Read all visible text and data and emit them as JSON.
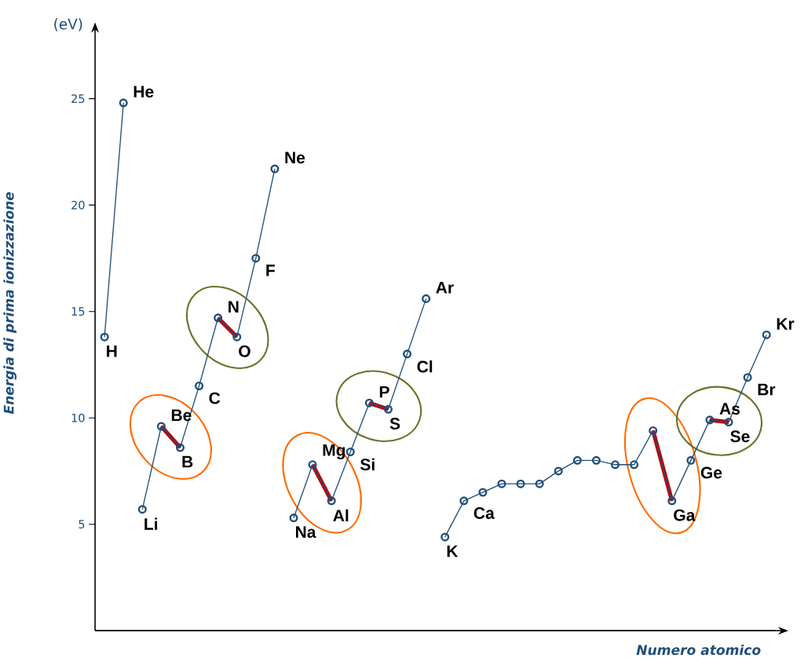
{
  "chart_data": {
    "type": "line",
    "xlabel": "Numero atomico",
    "ylabel": "Energia di prima ionizzazione",
    "annotations": [
      "(eV)"
    ],
    "categories": [
      null,
      null,
      null,
      null,
      null,
      null,
      null,
      null,
      null,
      null,
      null,
      null,
      null,
      null,
      null,
      null,
      null,
      null,
      null,
      null,
      null,
      null,
      null,
      null,
      null,
      null,
      null,
      null,
      null,
      null,
      null,
      null,
      null,
      null,
      null,
      null
    ],
    "value_labels": [
      "H",
      "He",
      "Li",
      "Be",
      "B",
      "C",
      "N",
      "O",
      "F",
      "Ne",
      "Na",
      "Mg",
      "Al",
      "Si",
      "P",
      "S",
      "Cl",
      "Ar",
      "K",
      "Ca",
      null,
      null,
      null,
      null,
      null,
      null,
      null,
      null,
      null,
      null,
      "Ga",
      "Ge",
      "As",
      "Se",
      "Br",
      "Kr"
    ],
    "ylim": [
      0,
      28
    ],
    "yticks": [
      5,
      10,
      15,
      20,
      25
    ],
    "marker": "circle",
    "line_style": "solid",
    "series": [
      {
        "color": "#c00000",
        "type": "line",
        "marker": "none",
        "values": [
          null,
          null,
          null,
          9.6,
          8.6,
          null,
          null,
          null,
          null,
          null,
          null,
          null,
          null,
          null,
          null,
          null,
          null,
          null,
          null,
          null,
          null,
          null,
          null,
          null,
          null,
          null,
          null,
          null,
          null,
          null,
          null,
          null,
          null,
          null,
          null,
          null
        ]
      },
      {
        "color": "#c00000",
        "type": "line",
        "marker": "none",
        "values": [
          null,
          null,
          null,
          null,
          null,
          null,
          14.7,
          13.8,
          null,
          null,
          null,
          null,
          null,
          null,
          null,
          null,
          null,
          null,
          null,
          null,
          null,
          null,
          null,
          null,
          null,
          null,
          null,
          null,
          null,
          null,
          null,
          null,
          null,
          null,
          null,
          null
        ]
      },
      {
        "color": "#c00000",
        "type": "line",
        "marker": "none",
        "values": [
          null,
          null,
          null,
          null,
          null,
          null,
          null,
          null,
          null,
          null,
          null,
          7.8,
          6.1,
          null,
          null,
          null,
          null,
          null,
          null,
          null,
          null,
          null,
          null,
          null,
          null,
          null,
          null,
          null,
          null,
          null,
          null,
          null,
          null,
          null,
          null,
          null
        ]
      },
      {
        "color": "#c00000",
        "type": "line",
        "marker": "none",
        "values": [
          null,
          null,
          null,
          null,
          null,
          null,
          null,
          null,
          null,
          null,
          null,
          null,
          null,
          null,
          10.7,
          10.4,
          null,
          null,
          null,
          null,
          null,
          null,
          null,
          null,
          null,
          null,
          null,
          null,
          null,
          null,
          null,
          null,
          null,
          null,
          null,
          null
        ]
      },
      {
        "color": "#c00000",
        "type": "line",
        "marker": "none",
        "values": [
          null,
          null,
          null,
          null,
          null,
          null,
          null,
          null,
          null,
          null,
          null,
          null,
          null,
          null,
          null,
          null,
          null,
          null,
          null,
          null,
          null,
          null,
          null,
          null,
          null,
          null,
          null,
          null,
          null,
          9.4,
          6.1,
          null,
          null,
          null,
          null,
          null
        ]
      },
      {
        "color": "#c00000",
        "type": "line",
        "marker": "none",
        "values": [
          null,
          null,
          null,
          null,
          null,
          null,
          null,
          null,
          null,
          null,
          null,
          null,
          null,
          null,
          null,
          null,
          null,
          null,
          null,
          null,
          null,
          null,
          null,
          null,
          null,
          null,
          null,
          null,
          null,
          null,
          null,
          null,
          9.9,
          9.8,
          null,
          null
        ]
      },
      {
        "color": "#1f4e79",
        "values": [
          13.8,
          24.8,
          null,
          null,
          null,
          null,
          null,
          null,
          null,
          null,
          null,
          null,
          null,
          null,
          null,
          null,
          null,
          null,
          null,
          null,
          null,
          null,
          null,
          null,
          null,
          null,
          null,
          null,
          null,
          null,
          null,
          null,
          null,
          null,
          null,
          null
        ]
      },
      {
        "color": "#1f4e79",
        "values": [
          null,
          null,
          5.7,
          9.6,
          8.6,
          11.5,
          14.7,
          13.8,
          17.5,
          21.7,
          null,
          null,
          null,
          null,
          null,
          null,
          null,
          null,
          null,
          null,
          null,
          null,
          null,
          null,
          null,
          null,
          null,
          null,
          null,
          null,
          null,
          null,
          null,
          null,
          null,
          null
        ]
      },
      {
        "color": "#1f4e79",
        "values": [
          null,
          null,
          null,
          null,
          null,
          null,
          null,
          null,
          null,
          null,
          5.3,
          7.8,
          6.1,
          8.4,
          10.7,
          10.4,
          13.0,
          15.6,
          null,
          null,
          null,
          null,
          null,
          null,
          null,
          null,
          null,
          null,
          null,
          null,
          null,
          null,
          null,
          null,
          null,
          null
        ]
      },
      {
        "color": "#1f4e79",
        "values": [
          null,
          null,
          null,
          null,
          null,
          null,
          null,
          null,
          null,
          null,
          null,
          null,
          null,
          null,
          null,
          null,
          null,
          null,
          4.4,
          6.1,
          6.5,
          6.9,
          6.9,
          6.9,
          7.5,
          8.0,
          8.0,
          7.8,
          7.8,
          9.4,
          6.1,
          8.0,
          9.9,
          9.8,
          11.9,
          13.9
        ]
      }
    ]
  }
}
